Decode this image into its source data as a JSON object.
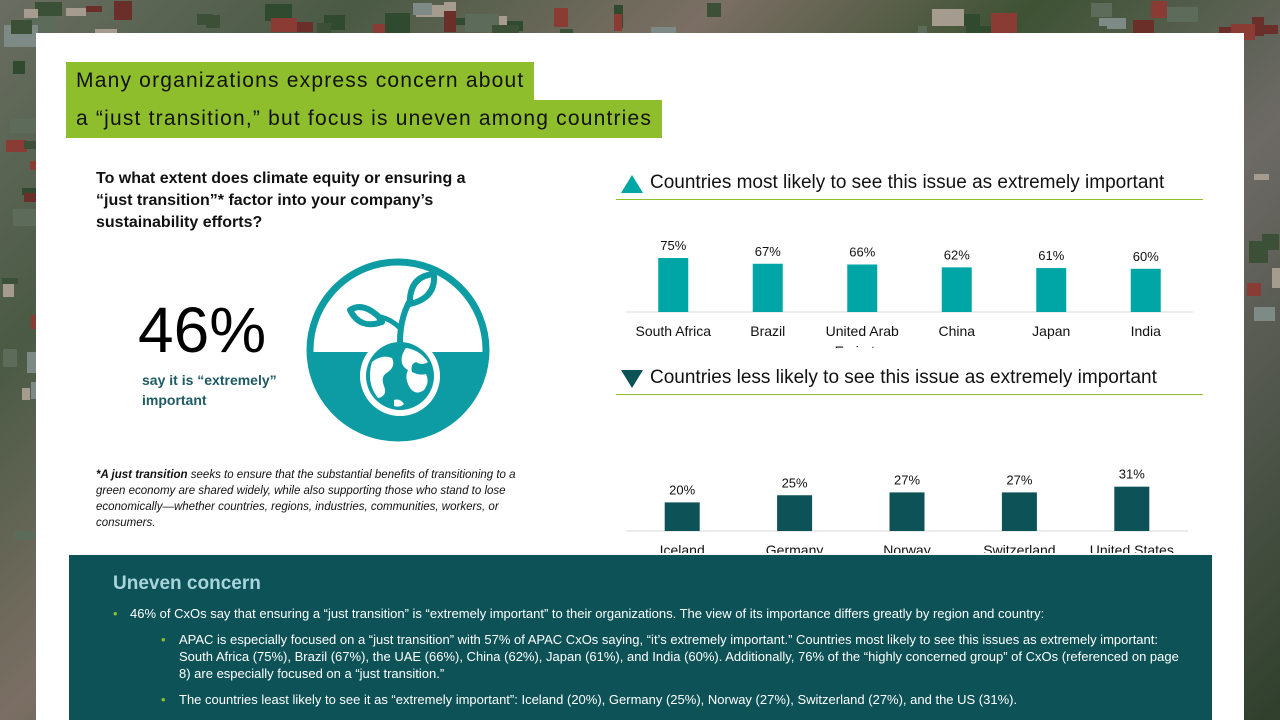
{
  "title": {
    "line1": "Many organizations express concern about",
    "line2": "a “just transition,” but focus is uneven among countries"
  },
  "question": "To what extent does climate equity or ensuring a “just transition”* factor into your company’s sustainability efforts?",
  "headline_stat": {
    "value": "46%",
    "caption": "say it is “extremely” important",
    "icon": "globe-seedling-icon"
  },
  "footnote": {
    "term": "*A just transition",
    "text": " seeks to ensure that the substantial benefits of transitioning to a green economy are shared widely, while also supporting those who stand to lose economically—whether countries, regions, industries, communities, workers, or consumers."
  },
  "colors": {
    "title_bg": "#8fbe2c",
    "top_bars": "#00a6a6",
    "bottom_bars": "#0c5257",
    "summary_bg": "#0c5257",
    "summary_title": "#a8d4dc"
  },
  "chart_data": [
    {
      "type": "bar",
      "title": "Countries most likely to see this issue as extremely important",
      "categories": [
        "South Africa",
        "Brazil",
        "United Arab Emirates",
        "China",
        "Japan",
        "India"
      ],
      "values": [
        75,
        67,
        66,
        62,
        61,
        60
      ],
      "data_labels": [
        "75%",
        "67%",
        "66%",
        "62%",
        "61%",
        "60%"
      ],
      "unit": "%",
      "ylim": [
        0,
        100
      ],
      "grid": false,
      "icon": "triangle-up-icon"
    },
    {
      "type": "bar",
      "title": "Countries less likely to see this issue as extremely important",
      "categories": [
        "Iceland",
        "Germany",
        "Norway",
        "Switzerland",
        "United States"
      ],
      "values": [
        20,
        25,
        27,
        27,
        31
      ],
      "data_labels": [
        "20%",
        "25%",
        "27%",
        "27%",
        "31%"
      ],
      "unit": "%",
      "ylim": [
        0,
        100
      ],
      "grid": false,
      "icon": "triangle-down-icon"
    }
  ],
  "summary": {
    "title": "Uneven concern",
    "bullet1": "46% of CxOs say that ensuring a “just transition” is “extremely important” to their organizations. The view of its importance differs greatly by region and country:",
    "sub1": "APAC is especially focused on a “just transition” with 57% of APAC CxOs saying, “it’s extremely important.” Countries most likely to see this issues as extremely important:  South Africa (75%), Brazil (67%), the UAE (66%), China (62%), Japan (61%), and India (60%). Additionally, 76% of the “highly concerned group” of CxOs (referenced on page 8) are especially focused on a “just transition.”",
    "sub2": "The countries least likely to see it as “extremely important”: Iceland (20%), Germany (25%), Norway (27%), Switzerland (27%), and the US (31%)."
  }
}
